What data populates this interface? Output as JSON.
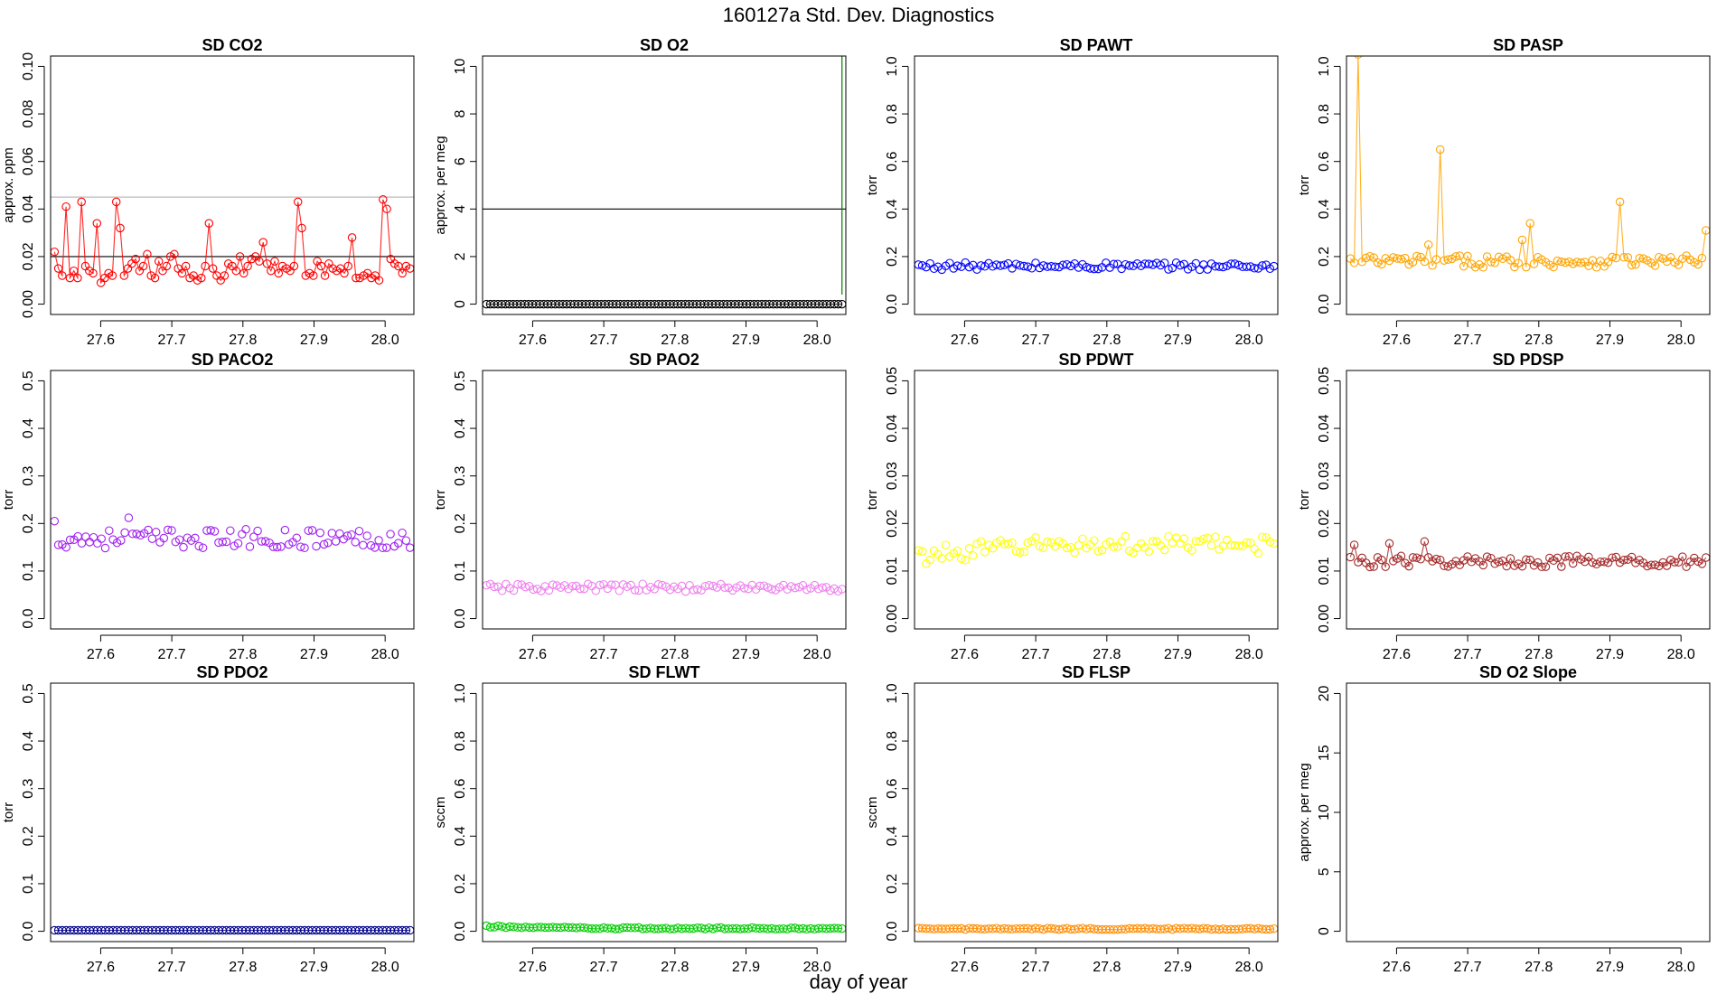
{
  "figure": {
    "title": "160127a   Std. Dev. Diagnostics",
    "xlabel": "day of year"
  },
  "colors": {
    "axis": "#000000",
    "ref_line": "#000000",
    "ref_line_light": "#bbbbbb",
    "spike_line": "#008000"
  },
  "chart_data": [
    {
      "type": "scatter",
      "title": "SD CO2",
      "ylabel": "approx. ppm",
      "xlim": [
        27.55,
        28.02
      ],
      "xticks": [
        27.6,
        27.7,
        27.8,
        27.9,
        28.0
      ],
      "ylim": [
        0,
        0.1
      ],
      "yticks": [
        0.0,
        0.02,
        0.04,
        0.06,
        0.08,
        0.1
      ],
      "color": "#ff0000",
      "connected": true,
      "hlines": [
        {
          "y": 0.02,
          "color": "#000000"
        },
        {
          "y": 0.045,
          "color": "#bbbbbb"
        }
      ],
      "x": [
        27.555,
        27.56,
        27.565,
        27.57,
        27.575,
        27.58,
        27.585,
        27.59,
        27.595,
        27.6,
        27.605,
        27.61,
        27.615,
        27.62,
        27.625,
        27.63,
        27.635,
        27.64,
        27.645,
        27.65,
        27.655,
        27.66,
        27.665,
        27.67,
        27.675,
        27.68,
        27.685,
        27.69,
        27.695,
        27.7,
        27.705,
        27.71,
        27.715,
        27.72,
        27.725,
        27.73,
        27.735,
        27.74,
        27.745,
        27.75,
        27.755,
        27.76,
        27.765,
        27.77,
        27.775,
        27.78,
        27.785,
        27.79,
        27.795,
        27.8,
        27.805,
        27.81,
        27.815,
        27.82,
        27.825,
        27.83,
        27.835,
        27.84,
        27.845,
        27.85,
        27.855,
        27.86,
        27.865,
        27.87,
        27.875,
        27.88,
        27.885,
        27.89,
        27.895,
        27.9,
        27.905,
        27.91,
        27.915,
        27.92,
        27.925,
        27.93,
        27.935,
        27.94,
        27.945,
        27.95,
        27.955,
        27.96,
        27.965,
        27.97,
        27.975,
        27.98,
        27.985,
        27.99,
        27.995,
        28.0,
        28.005,
        28.01,
        28.015
      ],
      "y": [
        0.022,
        0.015,
        0.012,
        0.041,
        0.011,
        0.014,
        0.011,
        0.043,
        0.016,
        0.014,
        0.013,
        0.034,
        0.009,
        0.011,
        0.013,
        0.012,
        0.043,
        0.032,
        0.012,
        0.015,
        0.017,
        0.019,
        0.014,
        0.016,
        0.021,
        0.012,
        0.011,
        0.018,
        0.014,
        0.016,
        0.02,
        0.021,
        0.015,
        0.013,
        0.016,
        0.011,
        0.012,
        0.01,
        0.011,
        0.016,
        0.034,
        0.015,
        0.012,
        0.01,
        0.012,
        0.017,
        0.016,
        0.014,
        0.02,
        0.013,
        0.016,
        0.019,
        0.02,
        0.018,
        0.026,
        0.017,
        0.014,
        0.018,
        0.013,
        0.016,
        0.015,
        0.014,
        0.016,
        0.043,
        0.032,
        0.012,
        0.013,
        0.012,
        0.018,
        0.016,
        0.012,
        0.017,
        0.015,
        0.014,
        0.015,
        0.013,
        0.016,
        0.028,
        0.011,
        0.011,
        0.012,
        0.013,
        0.011,
        0.012,
        0.01,
        0.044,
        0.04,
        0.019,
        0.017,
        0.016,
        0.013,
        0.016,
        0.015
      ]
    },
    {
      "type": "scatter",
      "title": "SD O2",
      "ylabel": "approx. per meg",
      "xlim": [
        27.55,
        28.02
      ],
      "xticks": [
        27.6,
        27.7,
        27.8,
        27.9,
        28.0
      ],
      "ylim": [
        0,
        10
      ],
      "yticks": [
        0,
        2,
        4,
        6,
        8,
        10
      ],
      "color": "#000000",
      "connected": true,
      "hlines": [
        {
          "y": 4,
          "color": "#000000"
        }
      ],
      "spike": {
        "x": 28.015,
        "y": 10.5,
        "color": "#008000"
      },
      "x_range": [
        27.555,
        28.015
      ],
      "n": 94,
      "constant": 0.0
    },
    {
      "type": "scatter",
      "title": "SD PAWT",
      "ylabel": "torr",
      "xlim": [
        27.55,
        28.02
      ],
      "xticks": [
        27.6,
        27.7,
        27.8,
        27.9,
        28.0
      ],
      "ylim": [
        0,
        1
      ],
      "yticks": [
        0.0,
        0.2,
        0.4,
        0.6,
        0.8,
        1.0
      ],
      "color": "#0000ff",
      "connected": false,
      "x_range": [
        27.555,
        28.015
      ],
      "n": 92,
      "mean": 0.16,
      "amp": 0.015
    },
    {
      "type": "scatter",
      "title": "SD PASP",
      "ylabel": "torr",
      "xlim": [
        27.55,
        28.02
      ],
      "xticks": [
        27.6,
        27.7,
        27.8,
        27.9,
        28.0
      ],
      "ylim": [
        0,
        1
      ],
      "yticks": [
        0.0,
        0.2,
        0.4,
        0.6,
        0.8,
        1.0
      ],
      "color": "#ffa500",
      "connected": true,
      "x_range": [
        27.555,
        28.015
      ],
      "n": 92,
      "mean": 0.18,
      "amp": 0.025,
      "peaks": [
        {
          "x": 27.565,
          "y": 1.05
        },
        {
          "x": 27.67,
          "y": 0.65
        },
        {
          "x": 27.79,
          "y": 0.34
        },
        {
          "x": 27.905,
          "y": 0.43
        },
        {
          "x": 28.015,
          "y": 0.31
        },
        {
          "x": 27.655,
          "y": 0.25
        },
        {
          "x": 27.775,
          "y": 0.27
        }
      ]
    },
    {
      "type": "scatter",
      "title": "SD PACO2",
      "ylabel": "torr",
      "xlim": [
        27.55,
        28.02
      ],
      "xticks": [
        27.6,
        27.7,
        27.8,
        27.9,
        28.0
      ],
      "ylim": [
        0,
        0.5
      ],
      "yticks": [
        0.0,
        0.1,
        0.2,
        0.3,
        0.4,
        0.5
      ],
      "color": "#a020f0",
      "connected": false,
      "x_range": [
        27.555,
        28.015
      ],
      "n": 92,
      "mean": 0.168,
      "amp": 0.02,
      "peaks": [
        {
          "x": 27.555,
          "y": 0.205
        },
        {
          "x": 27.65,
          "y": 0.212
        }
      ]
    },
    {
      "type": "scatter",
      "title": "SD PAO2",
      "ylabel": "torr",
      "xlim": [
        27.55,
        28.02
      ],
      "xticks": [
        27.6,
        27.7,
        27.8,
        27.9,
        28.0
      ],
      "ylim": [
        0,
        0.5
      ],
      "yticks": [
        0.0,
        0.1,
        0.2,
        0.3,
        0.4,
        0.5
      ],
      "color": "#ee82ee",
      "connected": false,
      "x_range": [
        27.555,
        28.015
      ],
      "n": 92,
      "mean": 0.065,
      "amp": 0.008
    },
    {
      "type": "scatter",
      "title": "SD PDWT",
      "ylabel": "torr",
      "xlim": [
        27.55,
        28.02
      ],
      "xticks": [
        27.6,
        27.7,
        27.8,
        27.9,
        28.0
      ],
      "ylim": [
        0,
        0.05
      ],
      "yticks": [
        0.0,
        0.01,
        0.02,
        0.03,
        0.04,
        0.05
      ],
      "color": "#ffff00",
      "connected": false,
      "x_range": [
        27.555,
        28.015
      ],
      "n": 92,
      "mean": 0.0155,
      "amp": 0.0018,
      "early_mean": 0.013
    },
    {
      "type": "scatter",
      "title": "SD PDSP",
      "ylabel": "torr",
      "xlim": [
        27.55,
        28.02
      ],
      "xticks": [
        27.6,
        27.7,
        27.8,
        27.9,
        28.0
      ],
      "ylim": [
        0,
        0.05
      ],
      "yticks": [
        0.0,
        0.01,
        0.02,
        0.03,
        0.04,
        0.05
      ],
      "color": "#a52a2a",
      "connected": true,
      "x_range": [
        27.555,
        28.015
      ],
      "n": 92,
      "mean": 0.012,
      "amp": 0.0012,
      "peaks": [
        {
          "x": 27.56,
          "y": 0.0155
        },
        {
          "x": 27.605,
          "y": 0.0158
        },
        {
          "x": 27.65,
          "y": 0.0162
        }
      ]
    },
    {
      "type": "scatter",
      "title": "SD PDO2",
      "ylabel": "torr",
      "xlim": [
        27.55,
        28.02
      ],
      "xticks": [
        27.6,
        27.7,
        27.8,
        27.9,
        28.0
      ],
      "ylim": [
        0,
        0.5
      ],
      "yticks": [
        0.0,
        0.1,
        0.2,
        0.3,
        0.4,
        0.5
      ],
      "color": "#00008b",
      "connected": true,
      "x_range": [
        27.555,
        28.015
      ],
      "n": 92,
      "constant": 0.002
    },
    {
      "type": "scatter",
      "title": "SD FLWT",
      "ylabel": "sccm",
      "xlim": [
        27.55,
        28.02
      ],
      "xticks": [
        27.6,
        27.7,
        27.8,
        27.9,
        28.0
      ],
      "ylim": [
        0,
        1
      ],
      "yticks": [
        0.0,
        0.2,
        0.4,
        0.6,
        0.8,
        1.0
      ],
      "color": "#00cc00",
      "connected": true,
      "x_range": [
        27.555,
        28.015
      ],
      "n": 92,
      "mean": 0.012,
      "amp": 0.004,
      "early_mean": 0.02
    },
    {
      "type": "scatter",
      "title": "SD FLSP",
      "ylabel": "sccm",
      "xlim": [
        27.55,
        28.02
      ],
      "xticks": [
        27.6,
        27.7,
        27.8,
        27.9,
        28.0
      ],
      "ylim": [
        0,
        1
      ],
      "yticks": [
        0.0,
        0.2,
        0.4,
        0.6,
        0.8,
        1.0
      ],
      "color": "#ff8c00",
      "connected": true,
      "x_range": [
        27.555,
        28.015
      ],
      "n": 92,
      "mean": 0.01,
      "amp": 0.003
    },
    {
      "type": "scatter",
      "title": "SD O2 Slope",
      "ylabel": "approx. per meg",
      "xlim": [
        27.55,
        28.02
      ],
      "xticks": [
        27.6,
        27.7,
        27.8,
        27.9,
        28.0
      ],
      "ylim": [
        0,
        20
      ],
      "yticks": [
        0,
        5,
        10,
        15,
        20
      ],
      "color": "#000000",
      "connected": false,
      "n": 0
    }
  ]
}
